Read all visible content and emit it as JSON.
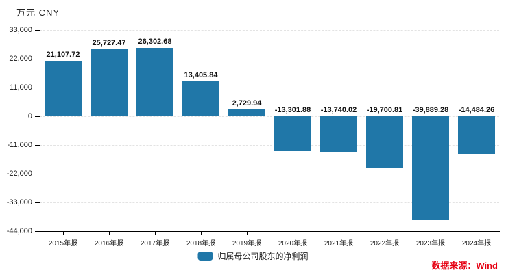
{
  "unit_label": "万元 CNY",
  "source_label": "数据来源：Wind",
  "legend": {
    "label": "归属母公司股东的净利润"
  },
  "colors": {
    "bar": "#2077a8",
    "source_text": "#e60012",
    "grid": "#e3e3e3",
    "axis": "#000000"
  },
  "chart_data": {
    "type": "bar",
    "title": "",
    "unit": "万元 CNY",
    "series_name": "归属母公司股东的净利润",
    "categories": [
      "2015年报",
      "2016年报",
      "2017年报",
      "2018年报",
      "2019年报",
      "2020年报",
      "2021年报",
      "2022年报",
      "2023年报",
      "2024年报"
    ],
    "values": [
      21107.72,
      25727.47,
      26302.68,
      13405.84,
      2729.94,
      -13301.88,
      -13740.02,
      -19700.81,
      -39889.28,
      -14484.26
    ],
    "value_labels": [
      "21,107.72",
      "25,727.47",
      "26,302.68",
      "13,405.84",
      "2,729.94",
      "-13,301.88",
      "-13,740.02",
      "-19,700.81",
      "-39,889.28",
      "-14,484.26"
    ],
    "y_ticks": [
      33000,
      22000,
      11000,
      0,
      -11000,
      -22000,
      -33000,
      -44000
    ],
    "y_tick_labels": [
      "33,000",
      "22,000",
      "11,000",
      "0",
      "-11,000",
      "-22,000",
      "-33,000",
      "-44,000"
    ],
    "ylim": [
      -44000,
      33000
    ],
    "bar_color": "#2077a8",
    "grid": "horizontal-dashed",
    "legend_position": "bottom-center",
    "source": "数据来源：Wind"
  }
}
